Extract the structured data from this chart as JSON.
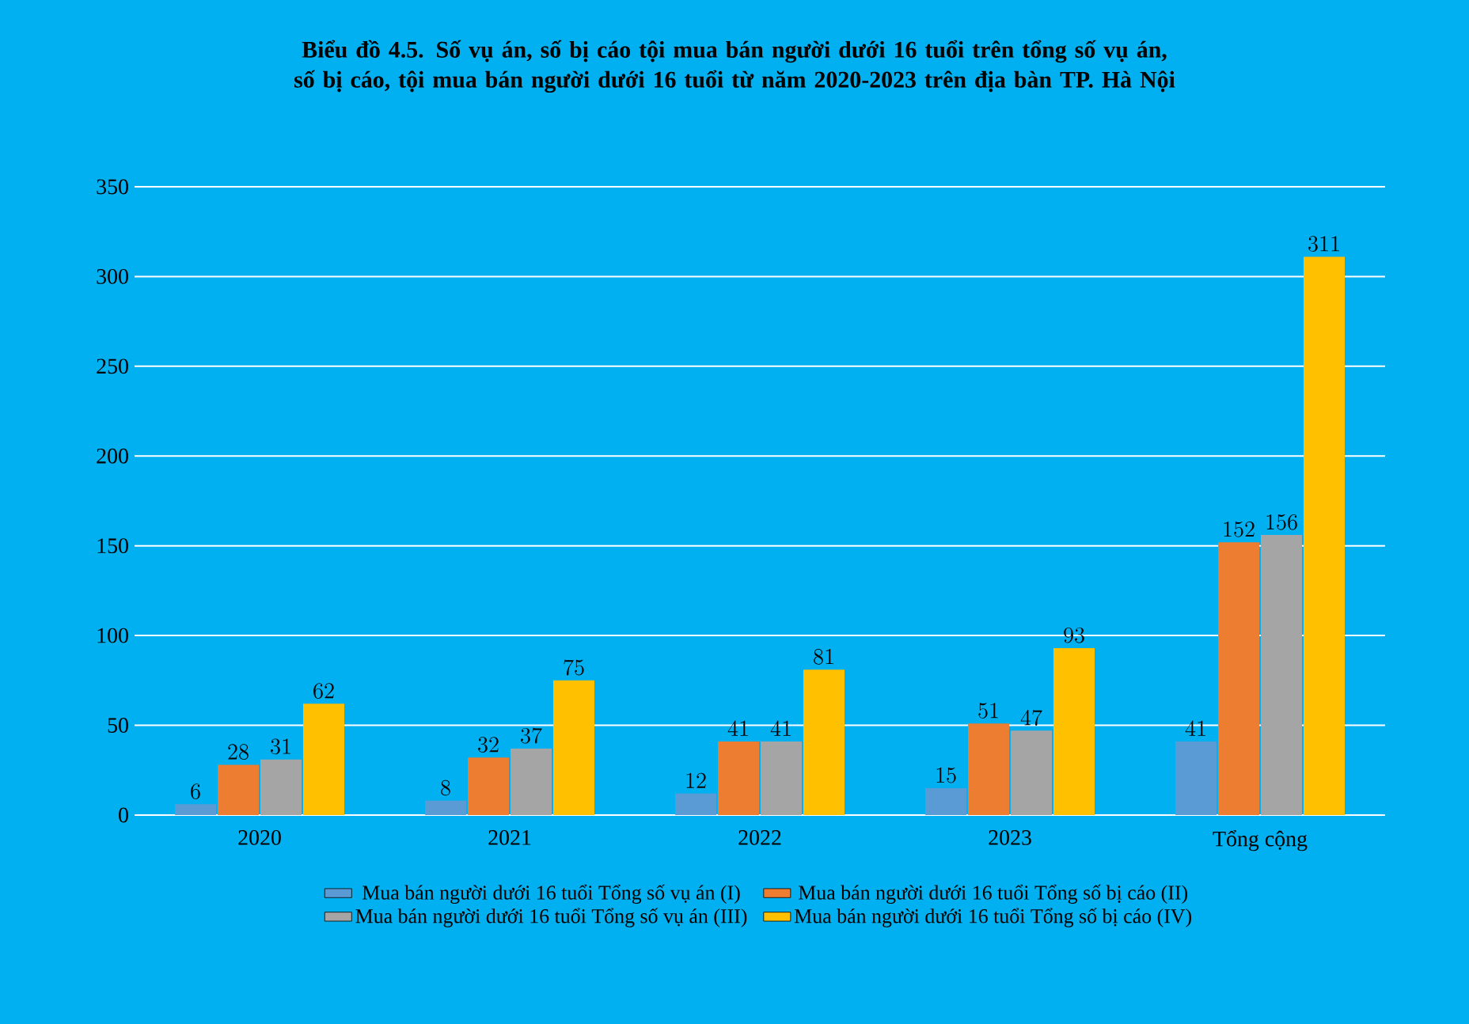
{
  "chart_data": {
    "type": "bar",
    "title": "Biểu đồ 4.5. Số vụ án, số bị cáo tội mua bán người dưới 16 tuổi trên tổng số vụ án, số bị cáo, tội mua bán người dưới 16 tuổi từ năm 2020-2023 trên địa bàn TP. Hà Nội",
    "categories": [
      "2020",
      "2021",
      "2022",
      "2023",
      "Tổng cộng"
    ],
    "series": [
      {
        "name": "Mua bán người dưới 16 tuổi Tổng số vụ án (I)",
        "color": "#5b9bd5",
        "values": [
          6,
          8,
          12,
          15,
          41
        ]
      },
      {
        "name": "Mua bán người dưới 16 tuổi Tổng số bị cáo (II)",
        "color": "#ed7d31",
        "values": [
          28,
          32,
          41,
          51,
          152
        ]
      },
      {
        "name": "Mua bán người dưới 16 tuổi Tổng số vụ án (III)",
        "color": "#a5a5a5",
        "values": [
          31,
          37,
          41,
          47,
          156
        ]
      },
      {
        "name": "Mua bán người dưới 16 tuổi Tổng số bị cáo (IV)",
        "color": "#ffc000",
        "values": [
          62,
          75,
          81,
          93,
          311
        ]
      }
    ],
    "ylim": [
      0,
      350
    ],
    "yticks": [
      0,
      50,
      100,
      150,
      200,
      250,
      300,
      350
    ],
    "grid": "y",
    "legend": "bottom",
    "data_labels": true
  }
}
